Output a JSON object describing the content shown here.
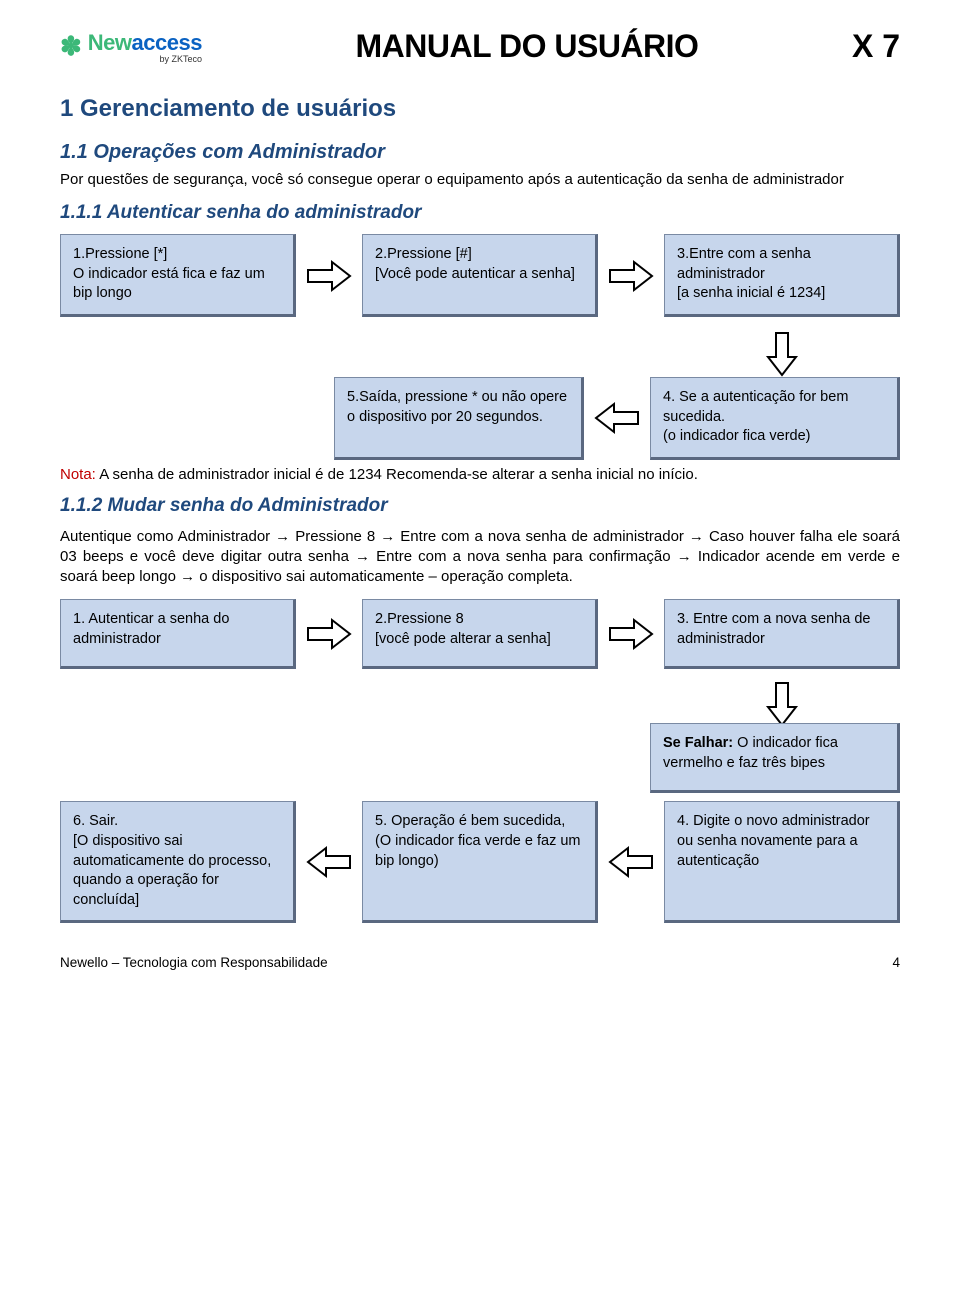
{
  "colors": {
    "heading": "#1f497d",
    "box_bg": "#c7d6ec",
    "box_border": "#7a8aa3",
    "box_shadow": "#5a6880",
    "nota": "#c00000",
    "logo_green": "#3cb878",
    "logo_blue": "#0a62c2"
  },
  "header": {
    "logo_new": "New",
    "logo_access": "access",
    "logo_by": "by ZKTeco",
    "title": "MANUAL DO USUÁRIO",
    "code": "X 7"
  },
  "sec1": {
    "h1": "1 Gerenciamento de usuários",
    "h2": "1.1 Operações com Administrador",
    "intro": "Por questões de segurança, você só consegue operar o equipamento após a autenticação da senha de administrador",
    "h3a": "1.1.1 Autenticar senha do administrador",
    "flow1": {
      "b1": "1.Pressione [*]\nO indicador está fica e faz um bip longo",
      "b2": "2.Pressione [#]\n[Você pode autenticar a senha]",
      "b3": "3.Entre com a senha administrador\n[a senha inicial é 1234]",
      "b4": "4. Se a autenticação for bem sucedida.\n(o indicador fica verde)",
      "b5": "5.Saída, pressione * ou não opere o dispositivo por 20 segundos."
    },
    "nota_label": "Nota:",
    "nota_text": " A senha de administrador inicial é de 1234 Recomenda-se alterar a senha inicial no início.",
    "h3b": "1.1.2 Mudar senha do Administrador",
    "change_intro": "Autentique como Administrador →  Pressione 8 →  Entre com a nova senha de administrador → Caso houver falha ele soará 03 beeps e você deve digitar outra senha → Entre com a nova senha para confirmação → Indicador acende em verde e soará beep longo → o dispositivo sai automaticamente – operação completa.",
    "flow2": {
      "b1": "1. Autenticar a  senha do administrador",
      "b2": "2.Pressione  8\n[você pode alterar a senha]",
      "b3": "3. Entre com a nova senha de administrador",
      "fail": "Se Falhar: O indicador fica vermelho e faz três bipes",
      "b4": "4. Digite o novo administrador ou senha novamente para a autenticação",
      "b5": "5. Operação é bem sucedida, (O indicador fica verde e faz um bip longo)",
      "b6": "6. Sair.\n[O dispositivo sai automaticamente do processo, quando a operação for concluída]"
    }
  },
  "footer": {
    "left": "Newello – Tecnologia com Responsabilidade",
    "page": "4"
  }
}
